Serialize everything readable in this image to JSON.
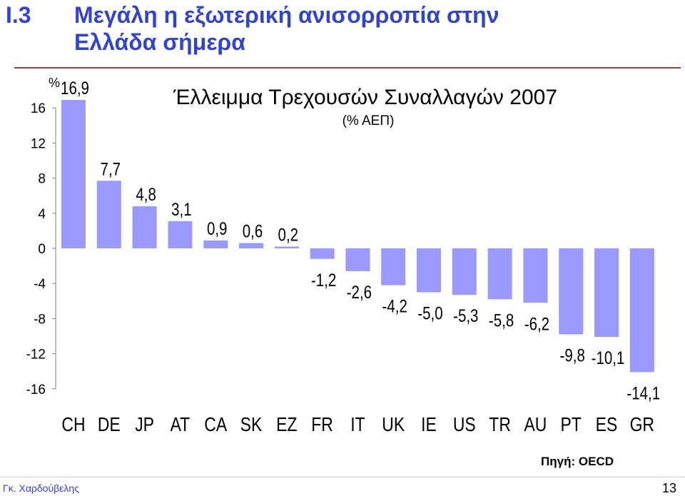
{
  "slide": {
    "number": "Ι.3",
    "title_line1": "Μεγάλη η εξωτερική ανισορροπία στην",
    "title_line2": "Ελλάδα σήμερα",
    "title_color": "#3344cc",
    "rule_color": "#a33a3a"
  },
  "chart_data": {
    "type": "bar",
    "title": "Έλλειμμα Τρεχουσών Συναλλαγών 2007",
    "subtitle": "(% ΑΕΠ)",
    "ylabel": "%",
    "categories": [
      "CH",
      "DE",
      "JP",
      "AT",
      "CA",
      "SK",
      "EZ",
      "FR",
      "IT",
      "UK",
      "IE",
      "US",
      "TR",
      "AU",
      "PT",
      "ES",
      "GR"
    ],
    "values": [
      16.9,
      7.7,
      4.8,
      3.1,
      0.9,
      0.6,
      0.2,
      -1.2,
      -2.6,
      -4.2,
      -5.0,
      -5.3,
      -5.8,
      -6.2,
      -9.8,
      -10.1,
      -14.1
    ],
    "value_labels": [
      "16,9",
      "7,7",
      "4,8",
      "3,1",
      "0,9",
      "0,6",
      "0,2",
      "-1,2",
      "-2,6",
      "-4,2",
      "-5,0",
      "-5,3",
      "-5,8",
      "-6,2",
      "-9,8",
      "-10,1",
      "-14,1"
    ],
    "yticks": [
      16,
      12,
      8,
      4,
      0,
      -4,
      -8,
      -12,
      -16
    ],
    "ytick_labels": [
      "16",
      "12",
      "8",
      "4",
      "0",
      "-4",
      "-8",
      "-12",
      "-16"
    ],
    "ylim": [
      -16,
      16
    ],
    "grid": false,
    "bar_color": "#9999ff"
  },
  "footer": {
    "source": "Πηγή: OECD",
    "author": "Γκ. Χαρδούβελης",
    "page": "13"
  }
}
